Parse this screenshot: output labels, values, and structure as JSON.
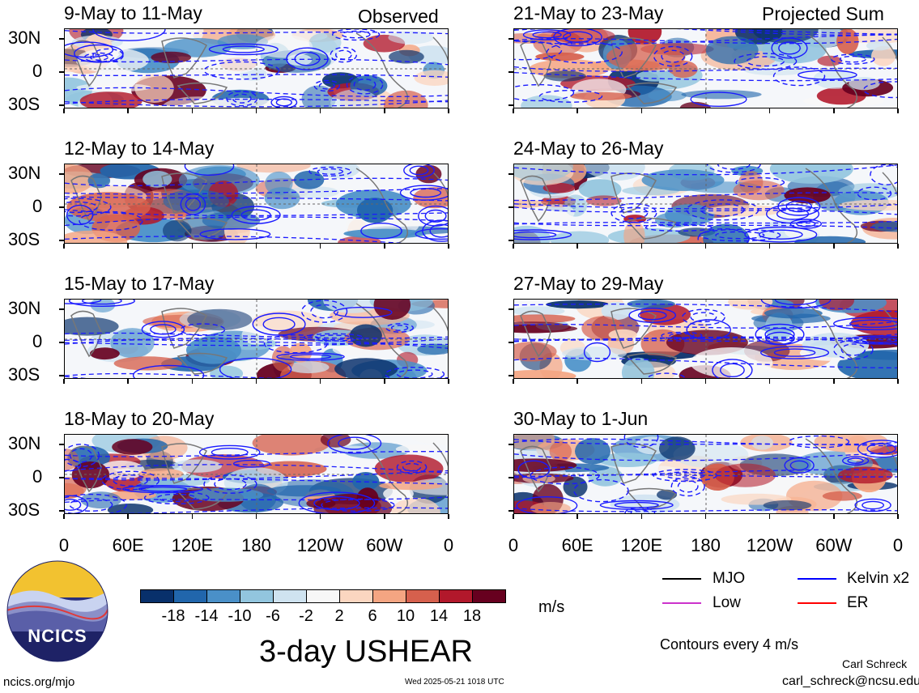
{
  "left_tag": "Observed",
  "right_tag": "Projected Sum",
  "panels": [
    {
      "title": "9-May to 11-May"
    },
    {
      "title": "12-May to 14-May"
    },
    {
      "title": "15-May to 17-May"
    },
    {
      "title": "18-May to 20-May"
    },
    {
      "title": "21-May to 23-May"
    },
    {
      "title": "24-May to 26-May"
    },
    {
      "title": "27-May to 29-May"
    },
    {
      "title": "30-May to 1-Jun"
    }
  ],
  "lat_labels": [
    "30N",
    "0",
    "30S"
  ],
  "lon_labels": [
    "0",
    "60E",
    "120E",
    "180",
    "120W",
    "60W",
    "0"
  ],
  "colorbar": {
    "labels": [
      "-18",
      "-14",
      "-10",
      "-6",
      "-2",
      "2",
      "6",
      "10",
      "14",
      "18"
    ],
    "colors": [
      "#08306b",
      "#2166ac",
      "#4a90c8",
      "#92c5de",
      "#cfe3f0",
      "#f7f7f7",
      "#fbd6c0",
      "#f4a582",
      "#d6604d",
      "#b2182b",
      "#67001f"
    ],
    "units": "m/s"
  },
  "main_title": "3-day USHEAR",
  "legend": [
    {
      "label": "MJO",
      "color": "#000000"
    },
    {
      "label": "Kelvin x2",
      "color": "#0000ff"
    },
    {
      "label": "Low",
      "color": "#cc33cc"
    },
    {
      "label": "ER",
      "color": "#ff0000"
    }
  ],
  "contour_note": "Contours every 4 m/s",
  "logo_text": "NCICS",
  "footer_left": "ncics.org/mjo",
  "footer_center": "Wed 2025-05-21 1018 UTC",
  "footer_right_name": "Carl Schreck",
  "footer_right_email": "carl_schreck@ncsu.edu"
}
